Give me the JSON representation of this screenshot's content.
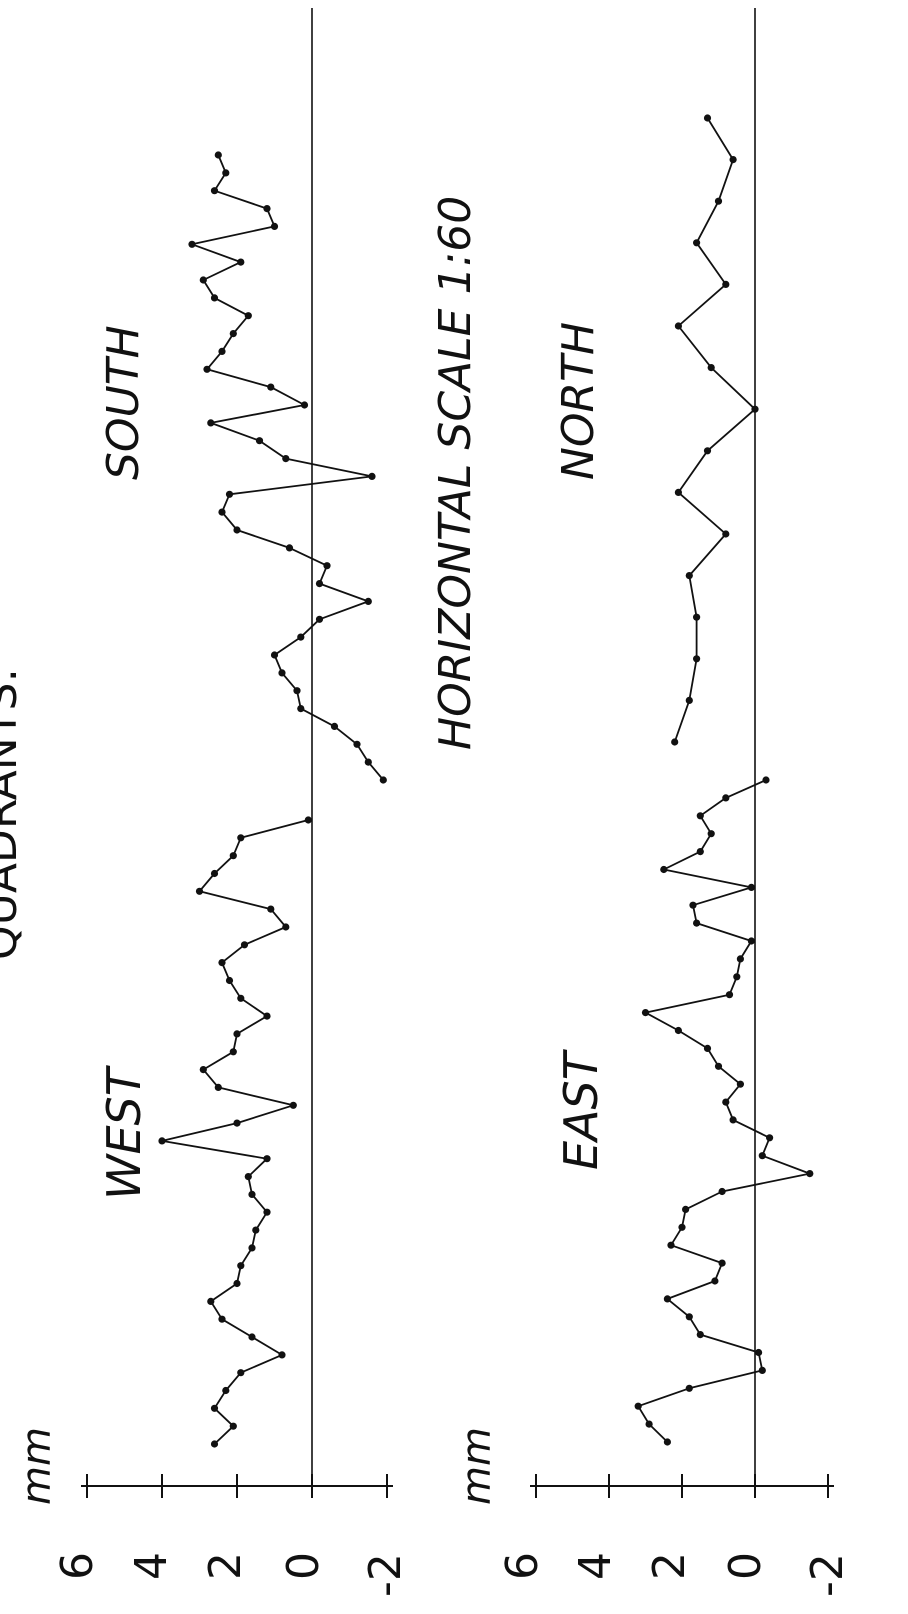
{
  "title_fragment": "QUADRANTS:",
  "scale_note": "HORIZONTAL SCALE  1:60",
  "chart_data": [
    {
      "type": "line",
      "unit_label": "mm",
      "ylim": [
        -2,
        6
      ],
      "yticks": [
        "-2",
        "0",
        "2",
        "4",
        "6"
      ],
      "zero_line": true,
      "series": [
        {
          "name": "WEST",
          "values": [
            2.6,
            2.1,
            2.6,
            2.3,
            1.9,
            0.8,
            1.6,
            2.4,
            2.7,
            2.0,
            1.9,
            1.6,
            1.5,
            1.2,
            1.6,
            1.7,
            1.2,
            4.0,
            2.0,
            0.5,
            2.5,
            2.9,
            2.1,
            2.0,
            1.2,
            1.9,
            2.2,
            2.4,
            1.8,
            0.7,
            1.1,
            3.0,
            2.6,
            2.1,
            1.9,
            0.1
          ]
        },
        {
          "name": "SOUTH",
          "values": [
            -1.9,
            -1.5,
            -1.2,
            -0.6,
            0.3,
            0.4,
            0.8,
            1.0,
            0.3,
            -0.2,
            -1.5,
            -0.2,
            -0.4,
            0.6,
            2.0,
            2.4,
            2.2,
            -1.6,
            0.7,
            1.4,
            2.7,
            0.2,
            1.1,
            2.8,
            2.4,
            2.1,
            1.7,
            2.6,
            2.9,
            1.9,
            3.2,
            1.0,
            1.2,
            2.6,
            2.3,
            2.5
          ]
        }
      ]
    },
    {
      "type": "line",
      "unit_label": "mm",
      "ylim": [
        -2,
        6
      ],
      "yticks": [
        "-2",
        "0",
        "2",
        "4",
        "6"
      ],
      "zero_line": true,
      "series": [
        {
          "name": "EAST",
          "values": [
            2.4,
            2.9,
            3.2,
            1.8,
            -0.2,
            -0.1,
            1.5,
            1.8,
            2.4,
            1.1,
            0.9,
            2.3,
            2.0,
            1.9,
            0.9,
            -1.5,
            -0.2,
            -0.4,
            0.6,
            0.8,
            0.4,
            1.0,
            1.3,
            2.1,
            3.0,
            0.7,
            0.5,
            0.4,
            0.1,
            1.6,
            1.7,
            0.1,
            2.5,
            1.5,
            1.2,
            1.5,
            0.8,
            -0.3
          ]
        },
        {
          "name": "NORTH",
          "values": [
            2.2,
            1.8,
            1.6,
            1.6,
            1.8,
            0.8,
            2.1,
            1.3,
            0.0,
            1.2,
            2.1,
            0.8,
            1.6,
            1.0,
            0.6,
            1.3
          ]
        }
      ]
    }
  ]
}
